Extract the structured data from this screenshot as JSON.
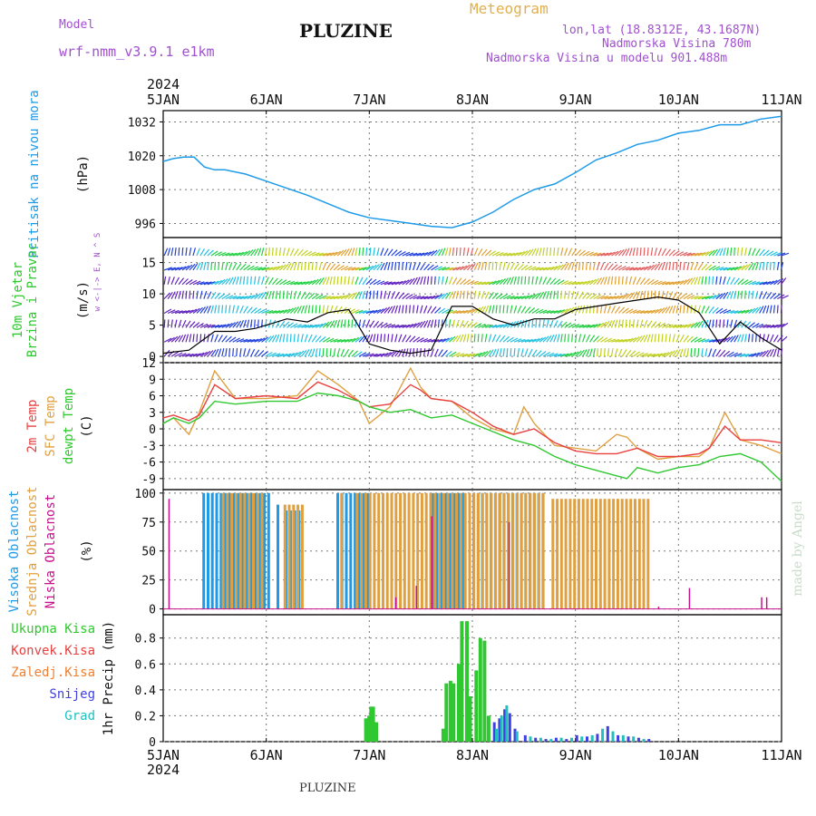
{
  "header": {
    "model_label": "Model",
    "model_name": "wrf-nmm_v3.9.1 e1km",
    "meteogram_label": "Meteogram",
    "title": "PLUZINE",
    "lonlat": "lon,lat (18.8312E, 43.1687N)",
    "elevation": "Nadmorska Visina 780m",
    "elevation_model": "Nadmorska Visina u modelu 901.488m"
  },
  "bottom_title": "PLUZINE",
  "watermark": "made by Angel",
  "colors": {
    "pressure": "#1e9be8",
    "temp2m": "#e84040",
    "sfc_temp": "#e0a040",
    "dewpt": "#30c830",
    "cloud_high": "#1e9be8",
    "cloud_mid": "#e0a040",
    "cloud_low": "#c8108c",
    "precip_total": "#30c830",
    "precip_conv": "#e84040",
    "precip_frozen": "#f08030",
    "snow": "#4040e0",
    "grad": "#20c0c0"
  },
  "chart_data": [
    {
      "type": "line",
      "panel": "pressure",
      "ylabel": "Pritisak na nivou mora",
      "unit": "(hPa)",
      "ylim": [
        991,
        1036
      ],
      "yticks": [
        996,
        1008,
        1020,
        1032
      ],
      "xlim": [
        0,
        6
      ],
      "xtick_labels": [
        "5JAN",
        "6JAN",
        "7JAN",
        "8JAN",
        "9JAN",
        "10JAN",
        "11JAN"
      ],
      "year_label": "2024",
      "grid": true,
      "series": [
        {
          "x": [
            0,
            0.1,
            0.2,
            0.3,
            0.4,
            0.5,
            0.6,
            0.8,
            1.0,
            1.2,
            1.4,
            1.6,
            1.8,
            2.0,
            2.2,
            2.4,
            2.6,
            2.8,
            3.0,
            3.2,
            3.4,
            3.6,
            3.8,
            4.0,
            4.2,
            4.4,
            4.6,
            4.8,
            5.0,
            5.2,
            5.4,
            5.6,
            5.8,
            6.0
          ],
          "y": [
            1018,
            1019,
            1019.5,
            1019.5,
            1016,
            1015,
            1015,
            1013.5,
            1011,
            1008.5,
            1006,
            1003,
            1000,
            998,
            997,
            996,
            995,
            994.5,
            996.5,
            1000,
            1004.5,
            1008,
            1010,
            1014,
            1018.5,
            1021,
            1024,
            1025.5,
            1028,
            1029,
            1031,
            1031,
            1033,
            1034
          ]
        }
      ]
    },
    {
      "type": "line",
      "panel": "wind",
      "ylabel": "10m Vjetar Brzina i Pravac",
      "unit": "(m/s)",
      "direction_key": "w <-|-> E, N ^ S",
      "ylim": [
        -1,
        19
      ],
      "yticks": [
        0,
        5,
        10,
        15
      ],
      "xlim": [
        0,
        6
      ],
      "series": [
        {
          "name": "speed",
          "x": [
            0,
            0.25,
            0.5,
            0.7,
            0.9,
            1.2,
            1.4,
            1.6,
            1.8,
            2.0,
            2.2,
            2.4,
            2.6,
            2.8,
            3.0,
            3.2,
            3.4,
            3.6,
            3.8,
            4.0,
            4.2,
            4.4,
            4.6,
            4.8,
            5.0,
            5.2,
            5.4,
            5.6,
            5.8,
            6.0
          ],
          "y": [
            0.5,
            1,
            4,
            4,
            4.5,
            6,
            5.5,
            7,
            7.5,
            2,
            1,
            0.5,
            1,
            8,
            8,
            6,
            5,
            6,
            6,
            7.5,
            8,
            8.5,
            9,
            9.5,
            9,
            7,
            2,
            5.5,
            3,
            1
          ]
        }
      ]
    },
    {
      "type": "line",
      "panel": "temperature",
      "ylabels": [
        "2m Temp",
        "SFC Temp",
        "dewpt Temp"
      ],
      "unit": "(C)",
      "ylim": [
        -11,
        12
      ],
      "yticks": [
        -9,
        -6,
        -3,
        0,
        3,
        6,
        9,
        12
      ],
      "xlim": [
        0,
        6
      ],
      "series": [
        {
          "name": "2m Temp",
          "x": [
            0,
            0.1,
            0.25,
            0.35,
            0.5,
            0.7,
            1.0,
            1.3,
            1.5,
            1.7,
            1.9,
            2.0,
            2.2,
            2.4,
            2.5,
            2.6,
            2.8,
            3.0,
            3.2,
            3.4,
            3.6,
            3.8,
            4.0,
            4.2,
            4.4,
            4.6,
            4.8,
            5.0,
            5.2,
            5.3,
            5.45,
            5.6,
            5.8,
            6.0
          ],
          "y": [
            2,
            2.5,
            1.5,
            2.5,
            8,
            5.5,
            6,
            5.5,
            8.5,
            7,
            5,
            4,
            4.5,
            8,
            7,
            5.5,
            5,
            3,
            0.5,
            -1,
            0,
            -2.5,
            -4,
            -4.5,
            -4.5,
            -3.5,
            -5,
            -5,
            -4.5,
            -3.5,
            0.5,
            -2,
            -2,
            -2.5
          ]
        },
        {
          "name": "SFC Temp",
          "x": [
            0,
            0.1,
            0.25,
            0.35,
            0.5,
            0.7,
            1.0,
            1.3,
            1.5,
            1.7,
            1.9,
            2.0,
            2.2,
            2.4,
            2.5,
            2.6,
            2.8,
            3.0,
            3.2,
            3.4,
            3.5,
            3.6,
            3.8,
            4.0,
            4.2,
            4.4,
            4.5,
            4.6,
            4.8,
            5.0,
            5.2,
            5.3,
            5.45,
            5.6,
            5.8,
            6.0
          ],
          "y": [
            1,
            2,
            -1,
            3,
            10.5,
            5.5,
            5.5,
            6,
            10.5,
            8,
            5,
            1,
            4,
            11,
            7.5,
            5.5,
            5,
            2,
            0,
            -1,
            4,
            1,
            -3,
            -3.5,
            -4,
            -1,
            -1.5,
            -3.5,
            -5.5,
            -5,
            -5,
            -3.5,
            3,
            -2,
            -3,
            -4.5
          ]
        },
        {
          "name": "dewpt Temp",
          "x": [
            0,
            0.1,
            0.25,
            0.35,
            0.5,
            0.7,
            1.0,
            1.3,
            1.5,
            1.7,
            1.9,
            2.0,
            2.2,
            2.4,
            2.6,
            2.8,
            3.0,
            3.2,
            3.4,
            3.6,
            3.8,
            4.0,
            4.2,
            4.4,
            4.5,
            4.6,
            4.8,
            5.0,
            5.2,
            5.4,
            5.6,
            5.8,
            6.0
          ],
          "y": [
            1,
            2,
            1,
            2,
            5,
            4.5,
            5,
            5,
            6.5,
            6,
            5,
            4,
            3,
            3.5,
            2,
            2.5,
            1,
            -0.5,
            -2,
            -3,
            -5,
            -6.5,
            -7.5,
            -8.5,
            -9,
            -7,
            -8,
            -7,
            -6.5,
            -5,
            -4.5,
            -6,
            -9.5
          ]
        }
      ]
    },
    {
      "type": "bar",
      "panel": "cloud_cover",
      "ylabels": [
        "Visoka Oblacnost",
        "Srednja Oblacnost",
        "Niska Oblacnost"
      ],
      "unit": "(%)",
      "ylim": [
        -5,
        103
      ],
      "yticks": [
        0,
        25,
        50,
        75,
        100
      ],
      "xlim": [
        0,
        6
      ],
      "series": [
        {
          "name": "Visoka Oblacnost",
          "x_ranges": [
            [
              0.38,
              1.02
            ],
            [
              1.1,
              1.12
            ],
            [
              1.18,
              1.32
            ],
            [
              1.68,
              2.0
            ],
            [
              2.6,
              2.9
            ],
            [
              3.0,
              3.7
            ]
          ],
          "values": [
            100,
            90,
            85,
            100,
            100,
            100
          ]
        },
        {
          "name": "Srednja Oblacnost",
          "x_ranges": [
            [
              0.55,
              0.95
            ],
            [
              1.15,
              1.35
            ],
            [
              1.7,
              1.72
            ],
            [
              1.85,
              3.7
            ],
            [
              3.75,
              4.7
            ]
          ],
          "values": [
            100,
            90,
            100,
            100,
            95
          ]
        },
        {
          "name": "Niska Oblacnost",
          "x": [
            0.05,
            2.25,
            2.45,
            2.6,
            3.35,
            4.8,
            5.1,
            5.8,
            5.85
          ],
          "values": [
            95,
            10,
            20,
            80,
            75,
            2,
            18,
            10,
            10
          ]
        }
      ]
    },
    {
      "type": "bar",
      "panel": "precipitation",
      "ylabels": [
        "Ukupna Kisa",
        "Konvek.Kisa",
        "Zaledj.Kisa",
        "Snijeg",
        "Grad"
      ],
      "unit": "1hr Precip (mm)",
      "ylim": [
        0,
        0.98
      ],
      "yticks": [
        0,
        0.2,
        0.4,
        0.6,
        0.8
      ],
      "xlim": [
        0,
        6
      ],
      "xtick_labels": [
        "5JAN",
        "6JAN",
        "7JAN",
        "8JAN",
        "9JAN",
        "10JAN",
        "11JAN"
      ],
      "year_label": "2024",
      "series": [
        {
          "name": "Ukupna Kisa",
          "x": [
            1.95,
            1.98,
            2.0,
            2.02,
            2.05,
            2.7,
            2.73,
            2.77,
            2.8,
            2.85,
            2.88,
            2.93,
            2.96,
            3.02,
            3.06,
            3.1,
            3.14
          ],
          "values": [
            0.18,
            0.2,
            0.27,
            0.27,
            0.15,
            0.1,
            0.45,
            0.47,
            0.45,
            0.6,
            0.93,
            0.93,
            0.35,
            0.55,
            0.8,
            0.78,
            0.2
          ]
        },
        {
          "name": "Snijeg",
          "x": [
            3.2,
            3.25,
            3.3,
            3.35,
            3.4,
            3.5,
            3.6,
            3.7,
            3.8,
            3.9,
            4.0,
            4.1,
            4.2,
            4.3,
            4.4,
            4.5,
            4.6,
            4.7
          ],
          "values": [
            0.15,
            0.18,
            0.25,
            0.22,
            0.1,
            0.05,
            0.03,
            0.02,
            0.03,
            0.02,
            0.05,
            0.04,
            0.06,
            0.12,
            0.05,
            0.04,
            0.03,
            0.02
          ]
        },
        {
          "name": "Grad",
          "x": [
            3.22,
            3.27,
            3.32,
            3.42,
            3.55,
            3.65,
            3.75,
            3.85,
            3.95,
            4.05,
            4.15,
            4.25,
            4.35,
            4.45,
            4.55,
            4.65
          ],
          "values": [
            0.1,
            0.2,
            0.28,
            0.08,
            0.04,
            0.03,
            0.02,
            0.03,
            0.03,
            0.04,
            0.05,
            0.1,
            0.08,
            0.05,
            0.04,
            0.02
          ]
        }
      ]
    }
  ]
}
